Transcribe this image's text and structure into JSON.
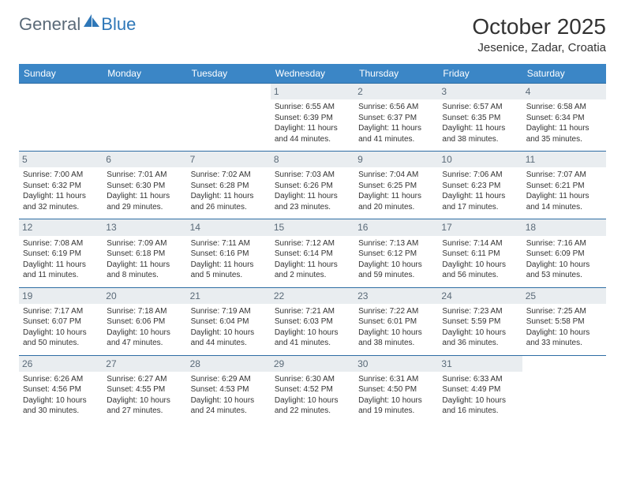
{
  "brand": {
    "part1": "General",
    "part2": "Blue"
  },
  "title": "October 2025",
  "location": "Jesenice, Zadar, Croatia",
  "style": {
    "header_bg": "#3b86c6",
    "header_fg": "#ffffff",
    "daynum_bg": "#e9edf0",
    "daynum_fg": "#5a6a78",
    "rule_color": "#2e6da4",
    "body_bg": "#ffffff",
    "text_color": "#333333",
    "title_fontsize": 28,
    "location_fontsize": 15,
    "dow_fontsize": 12,
    "cell_fontsize": 10
  },
  "daysOfWeek": [
    "Sunday",
    "Monday",
    "Tuesday",
    "Wednesday",
    "Thursday",
    "Friday",
    "Saturday"
  ],
  "calendar": {
    "rows": 5,
    "cols": 7,
    "startOffset": 3,
    "daysInMonth": 31
  },
  "days": {
    "1": {
      "sunrise": "6:55 AM",
      "sunset": "6:39 PM",
      "daylight_h": 11,
      "daylight_m": 44
    },
    "2": {
      "sunrise": "6:56 AM",
      "sunset": "6:37 PM",
      "daylight_h": 11,
      "daylight_m": 41
    },
    "3": {
      "sunrise": "6:57 AM",
      "sunset": "6:35 PM",
      "daylight_h": 11,
      "daylight_m": 38
    },
    "4": {
      "sunrise": "6:58 AM",
      "sunset": "6:34 PM",
      "daylight_h": 11,
      "daylight_m": 35
    },
    "5": {
      "sunrise": "7:00 AM",
      "sunset": "6:32 PM",
      "daylight_h": 11,
      "daylight_m": 32
    },
    "6": {
      "sunrise": "7:01 AM",
      "sunset": "6:30 PM",
      "daylight_h": 11,
      "daylight_m": 29
    },
    "7": {
      "sunrise": "7:02 AM",
      "sunset": "6:28 PM",
      "daylight_h": 11,
      "daylight_m": 26
    },
    "8": {
      "sunrise": "7:03 AM",
      "sunset": "6:26 PM",
      "daylight_h": 11,
      "daylight_m": 23
    },
    "9": {
      "sunrise": "7:04 AM",
      "sunset": "6:25 PM",
      "daylight_h": 11,
      "daylight_m": 20
    },
    "10": {
      "sunrise": "7:06 AM",
      "sunset": "6:23 PM",
      "daylight_h": 11,
      "daylight_m": 17
    },
    "11": {
      "sunrise": "7:07 AM",
      "sunset": "6:21 PM",
      "daylight_h": 11,
      "daylight_m": 14
    },
    "12": {
      "sunrise": "7:08 AM",
      "sunset": "6:19 PM",
      "daylight_h": 11,
      "daylight_m": 11
    },
    "13": {
      "sunrise": "7:09 AM",
      "sunset": "6:18 PM",
      "daylight_h": 11,
      "daylight_m": 8
    },
    "14": {
      "sunrise": "7:11 AM",
      "sunset": "6:16 PM",
      "daylight_h": 11,
      "daylight_m": 5
    },
    "15": {
      "sunrise": "7:12 AM",
      "sunset": "6:14 PM",
      "daylight_h": 11,
      "daylight_m": 2
    },
    "16": {
      "sunrise": "7:13 AM",
      "sunset": "6:12 PM",
      "daylight_h": 10,
      "daylight_m": 59
    },
    "17": {
      "sunrise": "7:14 AM",
      "sunset": "6:11 PM",
      "daylight_h": 10,
      "daylight_m": 56
    },
    "18": {
      "sunrise": "7:16 AM",
      "sunset": "6:09 PM",
      "daylight_h": 10,
      "daylight_m": 53
    },
    "19": {
      "sunrise": "7:17 AM",
      "sunset": "6:07 PM",
      "daylight_h": 10,
      "daylight_m": 50
    },
    "20": {
      "sunrise": "7:18 AM",
      "sunset": "6:06 PM",
      "daylight_h": 10,
      "daylight_m": 47
    },
    "21": {
      "sunrise": "7:19 AM",
      "sunset": "6:04 PM",
      "daylight_h": 10,
      "daylight_m": 44
    },
    "22": {
      "sunrise": "7:21 AM",
      "sunset": "6:03 PM",
      "daylight_h": 10,
      "daylight_m": 41
    },
    "23": {
      "sunrise": "7:22 AM",
      "sunset": "6:01 PM",
      "daylight_h": 10,
      "daylight_m": 38
    },
    "24": {
      "sunrise": "7:23 AM",
      "sunset": "5:59 PM",
      "daylight_h": 10,
      "daylight_m": 36
    },
    "25": {
      "sunrise": "7:25 AM",
      "sunset": "5:58 PM",
      "daylight_h": 10,
      "daylight_m": 33
    },
    "26": {
      "sunrise": "6:26 AM",
      "sunset": "4:56 PM",
      "daylight_h": 10,
      "daylight_m": 30
    },
    "27": {
      "sunrise": "6:27 AM",
      "sunset": "4:55 PM",
      "daylight_h": 10,
      "daylight_m": 27
    },
    "28": {
      "sunrise": "6:29 AM",
      "sunset": "4:53 PM",
      "daylight_h": 10,
      "daylight_m": 24
    },
    "29": {
      "sunrise": "6:30 AM",
      "sunset": "4:52 PM",
      "daylight_h": 10,
      "daylight_m": 22
    },
    "30": {
      "sunrise": "6:31 AM",
      "sunset": "4:50 PM",
      "daylight_h": 10,
      "daylight_m": 19
    },
    "31": {
      "sunrise": "6:33 AM",
      "sunset": "4:49 PM",
      "daylight_h": 10,
      "daylight_m": 16
    }
  },
  "labels": {
    "sunrise": "Sunrise:",
    "sunset": "Sunset:",
    "daylight": "Daylight:",
    "hours": "hours",
    "and": "and",
    "minutes": "minutes."
  }
}
